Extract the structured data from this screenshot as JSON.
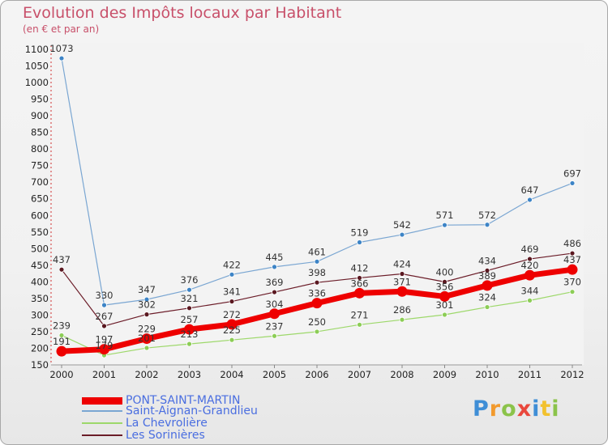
{
  "chart_data": {
    "type": "line",
    "title": "Evolution des Impôts locaux par Habitant",
    "subtitle": "(en € et par an)",
    "x": [
      "2000",
      "2001",
      "2002",
      "2003",
      "2004",
      "2005",
      "2006",
      "2007",
      "2008",
      "2009",
      "2010",
      "2011",
      "2012"
    ],
    "ylim": [
      150,
      1100
    ],
    "yticks": [
      150,
      200,
      250,
      300,
      350,
      400,
      450,
      500,
      550,
      600,
      650,
      700,
      750,
      800,
      850,
      900,
      950,
      1000,
      1050,
      1100
    ],
    "series": [
      {
        "name": "Les Sorinières",
        "color": "#6b1c28",
        "markerColor": "#5a1820",
        "width": 1.2,
        "markerR": 3,
        "values": [
          437,
          267,
          302,
          321,
          341,
          369,
          398,
          412,
          424,
          400,
          434,
          469,
          486
        ]
      },
      {
        "name": "La Chevrolière",
        "color": "#9dd86a",
        "markerColor": "#8ccd56",
        "width": 1.2,
        "markerR": 3,
        "values": [
          239,
          179,
          201,
          213,
          225,
          237,
          250,
          271,
          286,
          301,
          324,
          344,
          370
        ]
      },
      {
        "name": "Saint-Aignan-Grandlieu",
        "color": "#7aa6d2",
        "markerColor": "#3d84c6",
        "width": 1.2,
        "markerR": 3,
        "values": [
          1073,
          330,
          347,
          376,
          422,
          445,
          461,
          519,
          542,
          571,
          572,
          647,
          697
        ]
      },
      {
        "name": "PONT-SAINT-MARTIN",
        "color": "#ee0000",
        "markerColor": "#ee0000",
        "width": 7,
        "markerR": 6.5,
        "values": [
          191,
          197,
          229,
          257,
          272,
          304,
          336,
          366,
          371,
          356,
          389,
          420,
          437
        ]
      }
    ],
    "legend": [
      "PONT-SAINT-MARTIN",
      "Saint-Aignan-Grandlieu",
      "La Chevrolière",
      "Les Sorinières"
    ],
    "legend_colors": {
      "PONT-SAINT-MARTIN": "#ee0000",
      "Saint-Aignan-Grandlieu": "#7aa6d2",
      "La Chevrolière": "#9dd86a",
      "Les Sorinières": "#6b1c28"
    },
    "legend_placement": "bottom-left"
  },
  "logo": {
    "text": "Proxiti"
  }
}
